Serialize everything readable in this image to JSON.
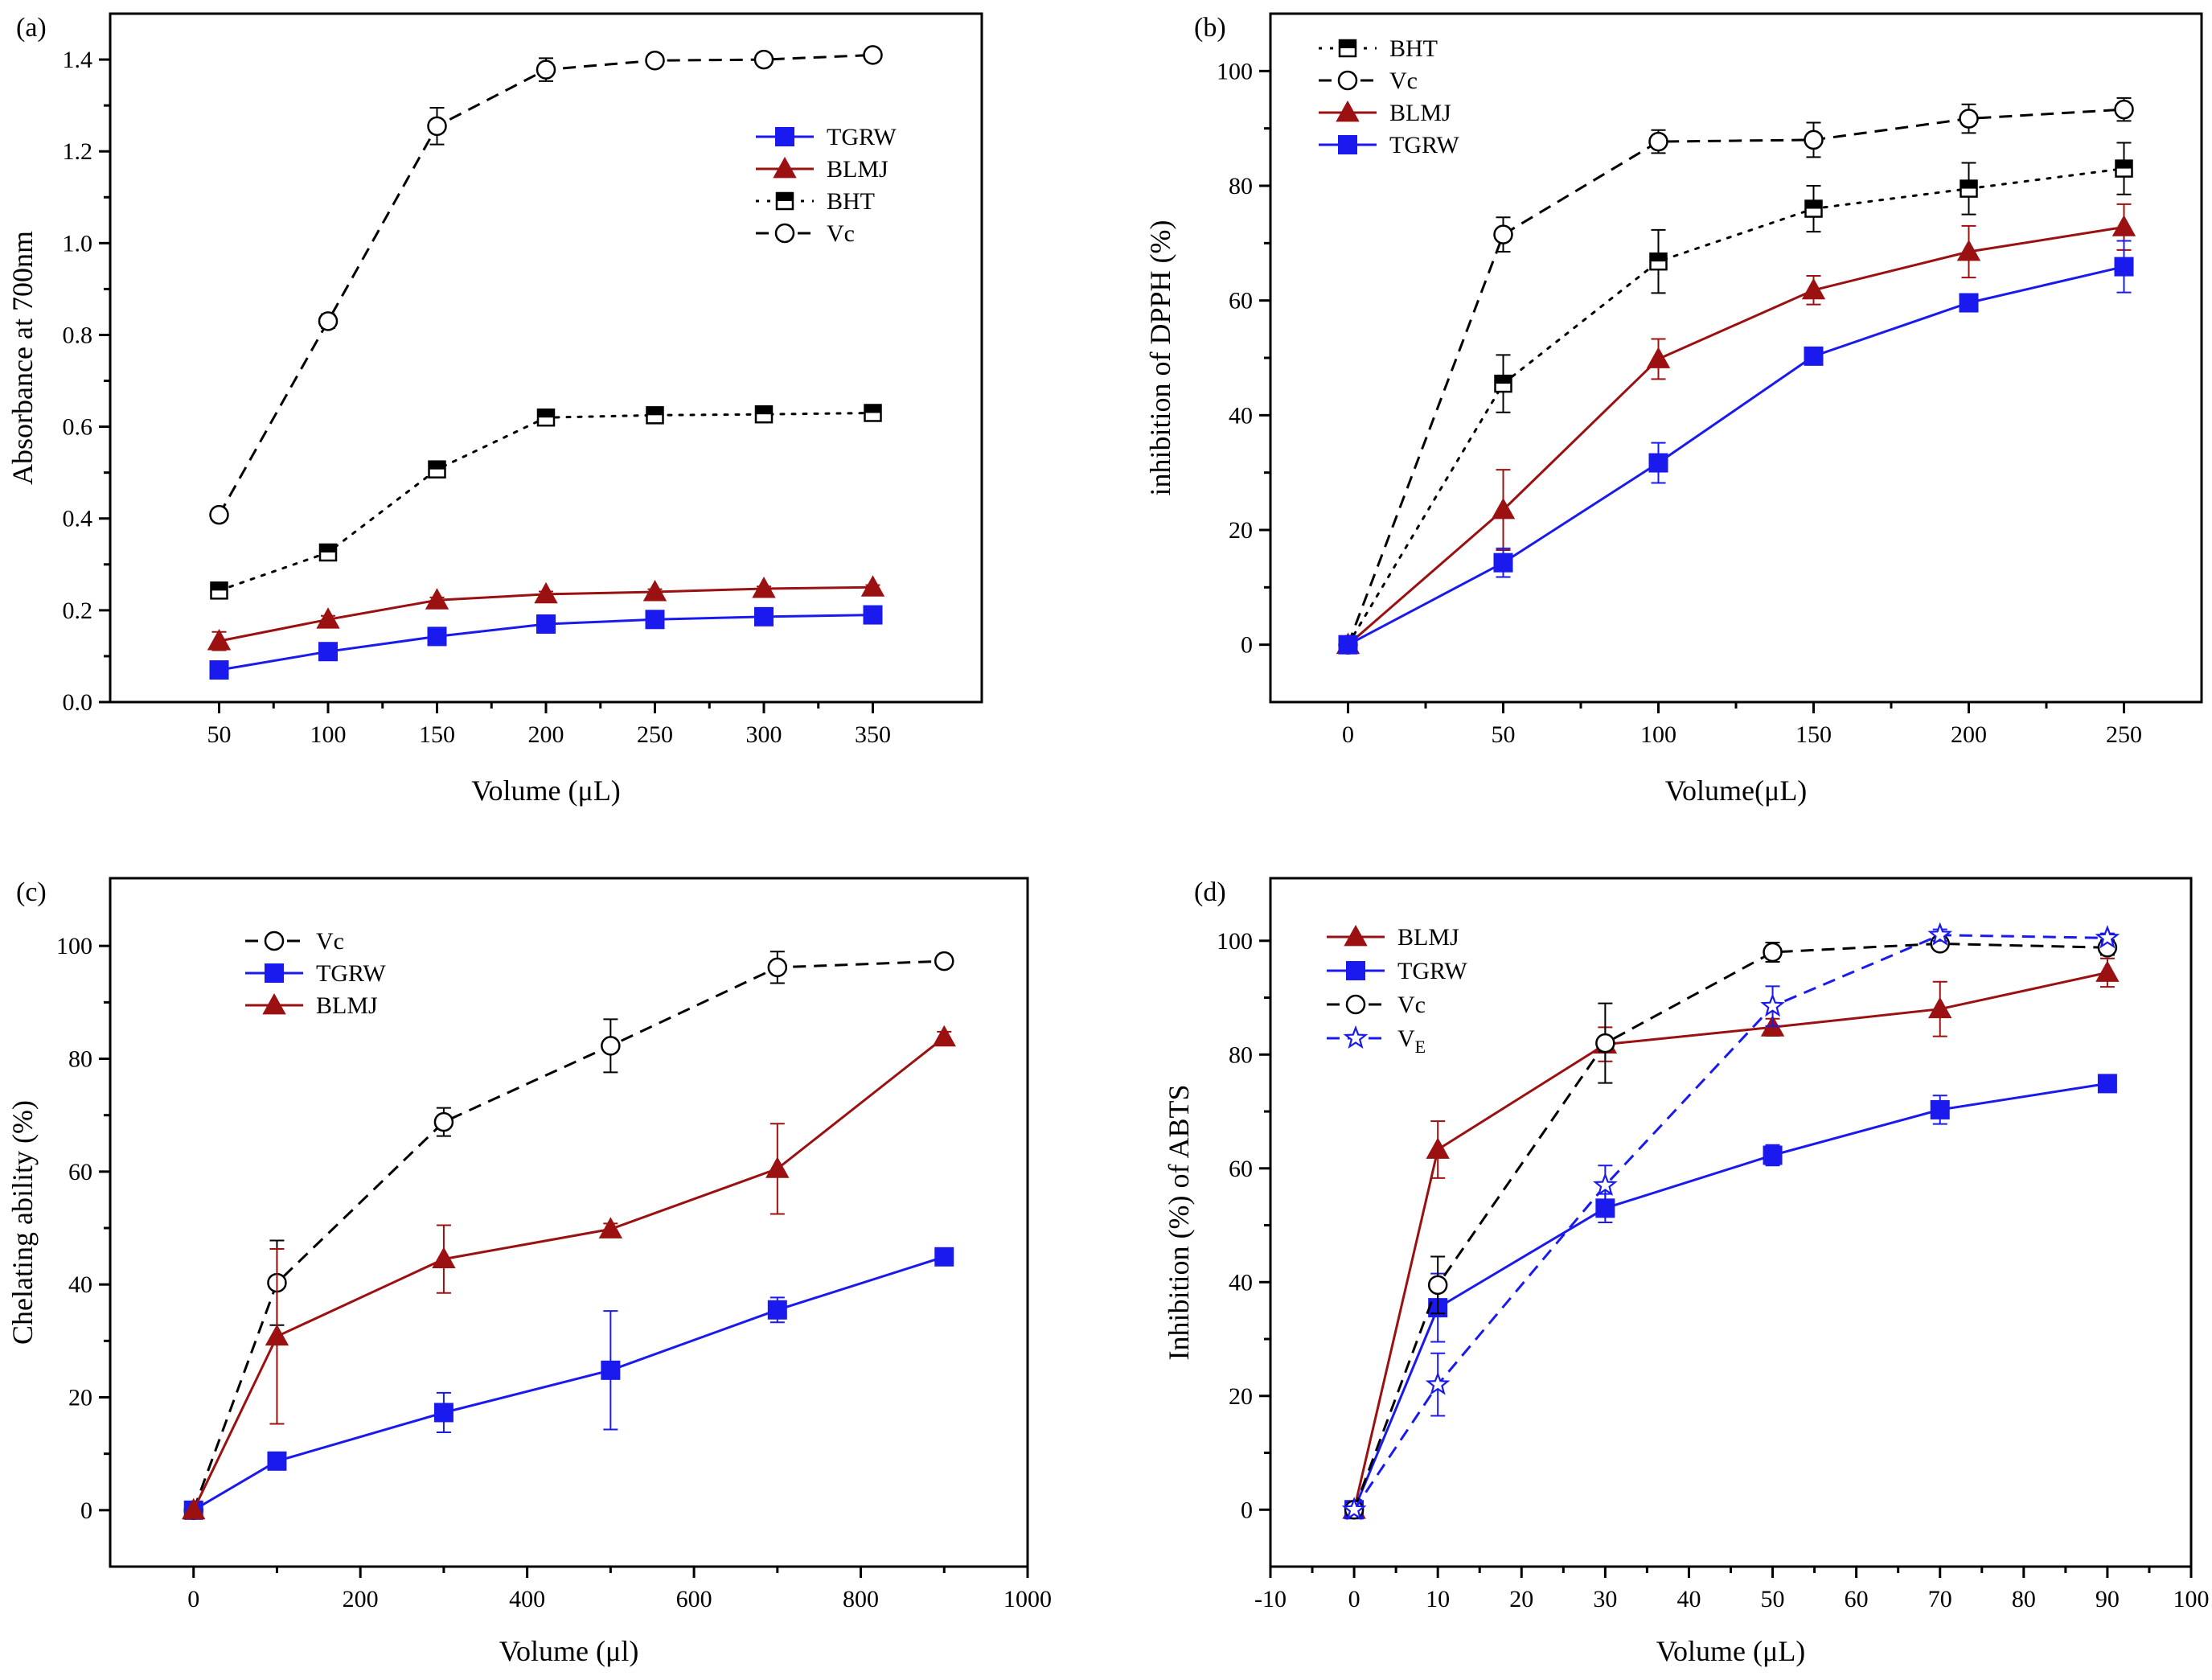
{
  "chart_data": [
    {
      "id": "a",
      "type": "line",
      "panel_label": "(a)",
      "xlabel": "Volume (μL)",
      "ylabel": "Absorbance at 700nm",
      "xlim": [
        0,
        400
      ],
      "ylim": [
        0,
        1.5
      ],
      "xticks": [
        50,
        100,
        150,
        200,
        250,
        300,
        350
      ],
      "yticks": [
        0.0,
        0.2,
        0.4,
        0.6,
        0.8,
        1.0,
        1.2,
        1.4
      ],
      "ytick_labels": [
        "0.0",
        "0.2",
        "0.4",
        "0.6",
        "0.8",
        "1.0",
        "1.2",
        "1.4"
      ],
      "legend_position": "upper-right",
      "series": [
        {
          "name": "TGRW",
          "color": "#1a1aee",
          "marker": "square",
          "dash": "solid",
          "x": [
            50,
            100,
            150,
            200,
            250,
            300,
            350
          ],
          "y": [
            0.07,
            0.11,
            0.143,
            0.17,
            0.18,
            0.186,
            0.19
          ],
          "err": [
            0.005,
            0.005,
            0.005,
            0.006,
            0.005,
            0.006,
            0.005
          ]
        },
        {
          "name": "BLMJ",
          "color": "#9b1010",
          "marker": "triangle",
          "dash": "solid",
          "x": [
            50,
            100,
            150,
            200,
            250,
            300,
            350
          ],
          "y": [
            0.133,
            0.18,
            0.222,
            0.235,
            0.24,
            0.247,
            0.25
          ],
          "err": [
            0.02,
            0.008,
            0.006,
            0.006,
            0.006,
            0.005,
            0.005
          ]
        },
        {
          "name": "BHT",
          "color": "#000000",
          "marker": "halfsquare",
          "dash": "dot",
          "x": [
            50,
            100,
            150,
            200,
            250,
            300,
            350
          ],
          "y": [
            0.243,
            0.326,
            0.507,
            0.62,
            0.625,
            0.627,
            0.63
          ],
          "err": [
            0.01,
            0.01,
            0.01,
            0.01,
            0.008,
            0.008,
            0.008
          ]
        },
        {
          "name": "Vc",
          "color": "#000000",
          "marker": "circle",
          "dash": "dash",
          "x": [
            50,
            100,
            150,
            200,
            250,
            300,
            350
          ],
          "y": [
            0.408,
            0.83,
            1.255,
            1.378,
            1.398,
            1.4,
            1.41
          ],
          "err": [
            0.01,
            0.015,
            0.04,
            0.025,
            0.01,
            0.01,
            0.012
          ]
        }
      ]
    },
    {
      "id": "b",
      "type": "line",
      "panel_label": "(b)",
      "xlabel": "Volume(μL)",
      "ylabel": "inhibition of DPPH (%)",
      "xlim": [
        -25,
        275
      ],
      "ylim": [
        -10,
        110
      ],
      "xticks": [
        0,
        50,
        100,
        150,
        200,
        250
      ],
      "yticks": [
        0,
        20,
        40,
        60,
        80,
        100
      ],
      "ytick_labels": [
        "0",
        "20",
        "40",
        "60",
        "80",
        "100"
      ],
      "legend_position": "upper-left",
      "series": [
        {
          "name": "BHT",
          "color": "#000000",
          "marker": "halfsquare",
          "dash": "dot",
          "x": [
            0,
            50,
            100,
            150,
            200,
            250
          ],
          "y": [
            0,
            45.5,
            66.8,
            76,
            79.5,
            83
          ],
          "err": [
            0,
            5,
            5.5,
            4,
            4.5,
            4.5
          ]
        },
        {
          "name": "Vc",
          "color": "#000000",
          "marker": "circle",
          "dash": "dash",
          "x": [
            0,
            50,
            100,
            150,
            200,
            250
          ],
          "y": [
            0,
            71.5,
            87.7,
            88,
            91.7,
            93.3
          ],
          "err": [
            0,
            3,
            2,
            3,
            2.5,
            2
          ]
        },
        {
          "name": "BLMJ",
          "color": "#9b1010",
          "marker": "triangle",
          "dash": "solid",
          "x": [
            0,
            50,
            100,
            150,
            200,
            250
          ],
          "y": [
            0,
            23.5,
            49.8,
            61.8,
            68.5,
            72.8
          ],
          "err": [
            0,
            7,
            3.5,
            2.5,
            4.5,
            4
          ]
        },
        {
          "name": "TGRW",
          "color": "#1a1aee",
          "marker": "square",
          "dash": "solid",
          "x": [
            0,
            50,
            100,
            150,
            200,
            250
          ],
          "y": [
            0,
            14.3,
            31.7,
            50.3,
            59.6,
            65.9
          ],
          "err": [
            0,
            2.5,
            3.5,
            1.5,
            1,
            4.5
          ]
        }
      ]
    },
    {
      "id": "c",
      "type": "line",
      "panel_label": "(c)",
      "xlabel": "Volume (μl)",
      "ylabel": "Chelating ability (%)",
      "xlim": [
        -100,
        1000
      ],
      "ylim": [
        -10,
        112
      ],
      "xticks": [
        0,
        200,
        400,
        600,
        800,
        1000
      ],
      "yticks": [
        0,
        20,
        40,
        60,
        80,
        100
      ],
      "ytick_labels": [
        "0",
        "20",
        "40",
        "60",
        "80",
        "100"
      ],
      "legend_position": "upper-left",
      "series": [
        {
          "name": "Vc",
          "color": "#000000",
          "marker": "circle",
          "dash": "dash",
          "x": [
            0,
            100,
            300,
            500,
            700,
            900
          ],
          "y": [
            0,
            40.3,
            68.8,
            82.3,
            96.2,
            97.3
          ],
          "err": [
            0,
            7.5,
            2.5,
            4.7,
            2.8,
            1
          ]
        },
        {
          "name": "TGRW",
          "color": "#1a1aee",
          "marker": "square",
          "dash": "solid",
          "x": [
            0,
            100,
            300,
            500,
            700,
            900
          ],
          "y": [
            0,
            8.7,
            17.3,
            24.8,
            35.5,
            44.9
          ],
          "err": [
            0,
            0.5,
            3.5,
            10.5,
            2.2,
            0.5
          ]
        },
        {
          "name": "BLMJ",
          "color": "#9b1010",
          "marker": "triangle",
          "dash": "solid",
          "x": [
            0,
            100,
            300,
            500,
            700,
            900
          ],
          "y": [
            0,
            30.8,
            44.5,
            49.8,
            60.5,
            83.8
          ],
          "err": [
            0,
            15.5,
            6,
            1,
            8,
            1
          ]
        }
      ]
    },
    {
      "id": "d",
      "type": "line",
      "panel_label": "(d)",
      "xlabel": "Volume (μL)",
      "ylabel": "Inhibition (%) of ABTS",
      "xlim": [
        -10,
        100
      ],
      "ylim": [
        -10,
        111
      ],
      "xticks": [
        -10,
        0,
        10,
        20,
        30,
        40,
        50,
        60,
        70,
        80,
        90,
        100
      ],
      "yticks": [
        0,
        20,
        40,
        60,
        80,
        100
      ],
      "ytick_labels": [
        "0",
        "20",
        "40",
        "60",
        "80",
        "100"
      ],
      "legend_position": "upper-left",
      "series": [
        {
          "name": "BLMJ",
          "color": "#9b1010",
          "marker": "triangle",
          "dash": "solid",
          "x": [
            0,
            10,
            30,
            50,
            70,
            90
          ],
          "y": [
            0,
            63.3,
            81.8,
            84.8,
            88,
            94.4
          ],
          "err": [
            0,
            5,
            3,
            1.5,
            4.8,
            2.5
          ]
        },
        {
          "name": "TGRW",
          "color": "#1a1aee",
          "marker": "square",
          "dash": "solid",
          "x": [
            0,
            10,
            30,
            50,
            70,
            90
          ],
          "y": [
            0,
            35.5,
            53,
            62.3,
            70.3,
            74.9
          ],
          "err": [
            0,
            6,
            2.5,
            1.8,
            2.5,
            0.5
          ]
        },
        {
          "name": "Vc",
          "color": "#000000",
          "marker": "circle",
          "dash": "dash",
          "x": [
            0,
            10,
            30,
            50,
            70,
            90
          ],
          "y": [
            0,
            39.5,
            82,
            98,
            99.5,
            98.8
          ],
          "err": [
            0,
            5,
            7,
            1.7,
            1,
            1.3
          ]
        },
        {
          "name": "VE",
          "color": "#1a1aee",
          "marker": "star",
          "dash": "dash",
          "x": [
            0,
            10,
            30,
            50,
            70,
            90
          ],
          "y": [
            0,
            22,
            57,
            88.5,
            101,
            100.5
          ],
          "err": [
            0,
            5.5,
            3.5,
            3.5,
            1,
            0.8
          ]
        }
      ]
    }
  ]
}
